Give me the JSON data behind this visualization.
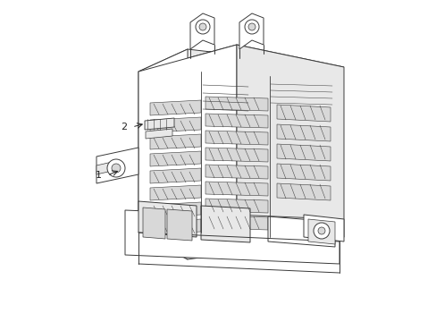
{
  "bg_color": "#ffffff",
  "line_color": "#3a3a3a",
  "fill_color": "#ffffff",
  "shade_light": "#e8e8e8",
  "shade_mid": "#d8d8d8",
  "line_width": 0.7,
  "label_color": "#222222",
  "arrow_color": "#222222"
}
